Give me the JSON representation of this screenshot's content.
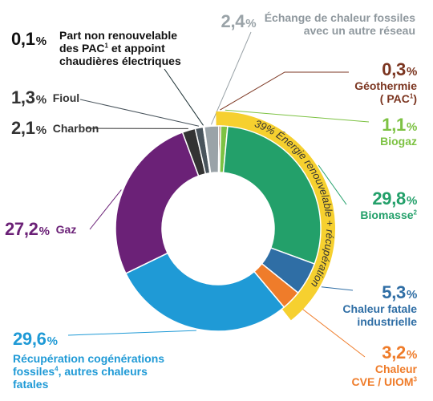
{
  "chart_data": {
    "type": "pie",
    "donut": true,
    "slices": [
      {
        "key": "echange",
        "value": 2.4,
        "label": "Échange de chaleur fossiles avec un autre réseau",
        "color": "#9aa3a8"
      },
      {
        "key": "geothermie",
        "value": 0.3,
        "label": "Géothermie ( PAC¹)",
        "color": "#7b3520"
      },
      {
        "key": "biogaz",
        "value": 1.1,
        "label": "Biogaz",
        "color": "#7dc243"
      },
      {
        "key": "biomasse",
        "value": 29.8,
        "label": "Biomasse²",
        "color": "#23a06a"
      },
      {
        "key": "chaleur_fatale",
        "value": 5.3,
        "label": "Chaleur fatale industrielle",
        "color": "#2f6ea5"
      },
      {
        "key": "cve_uiom",
        "value": 3.2,
        "label": "Chaleur CVE / UIOM³",
        "color": "#ef7c2a"
      },
      {
        "key": "recuperation",
        "value": 29.6,
        "label": "Récupération cogénérations fossiles⁴, autres chaleurs fatales",
        "color": "#1f9ad6"
      },
      {
        "key": "gaz",
        "value": 27.2,
        "label": "Gaz",
        "color": "#6b2177"
      },
      {
        "key": "charbon",
        "value": 2.1,
        "label": "Charbon",
        "color": "#333333"
      },
      {
        "key": "fioul",
        "value": 1.3,
        "label": "Fioul",
        "color": "#49545c"
      },
      {
        "key": "part_non_renouvelable",
        "value": 0.1,
        "label": "Part non renouvelable des PAC¹ et appoint chaudières électriques",
        "color": "#1b2f33"
      }
    ],
    "highlight_band": {
      "label": "39% Énergie renouvelable + récupération",
      "color": "#f6d02f"
    }
  },
  "labels": {
    "echange": {
      "pct": "2,4",
      "line1": "Échange de chaleur fossiles",
      "line2": "avec un autre réseau"
    },
    "geothermie": {
      "pct": "0,3",
      "line1": "Géothermie",
      "line2": "( PAC",
      "sup": "1",
      "line2b": ")"
    },
    "biogaz": {
      "pct": "1,1",
      "line1": "Biogaz"
    },
    "biomasse": {
      "pct": "29,8",
      "line1": "Biomasse",
      "sup": "2"
    },
    "chaleur_fatale": {
      "pct": "5,3",
      "line1": "Chaleur fatale",
      "line2": "industrielle"
    },
    "cve_uiom": {
      "pct": "3,2",
      "line1": "Chaleur",
      "line2": "CVE / UIOM",
      "sup": "3"
    },
    "recuperation": {
      "pct": "29,6",
      "line1": "Récupération cogénérations",
      "line2a": "fossiles",
      "sup": "4",
      "line2b": ", autres chaleurs",
      "line3": "fatales"
    },
    "gaz": {
      "pct": "27,2",
      "line1": "Gaz"
    },
    "charbon": {
      "pct": "2,1",
      "line1": "Charbon"
    },
    "fioul": {
      "pct": "1,3",
      "line1": "Fioul"
    },
    "part_non_renouvelable": {
      "pct": "0,1",
      "line1": "Part non renouvelable",
      "line2a": "des PAC",
      "sup": "1",
      "line2b": " et appoint",
      "line3": "chaudières électriques"
    }
  },
  "percent_sign": "%"
}
